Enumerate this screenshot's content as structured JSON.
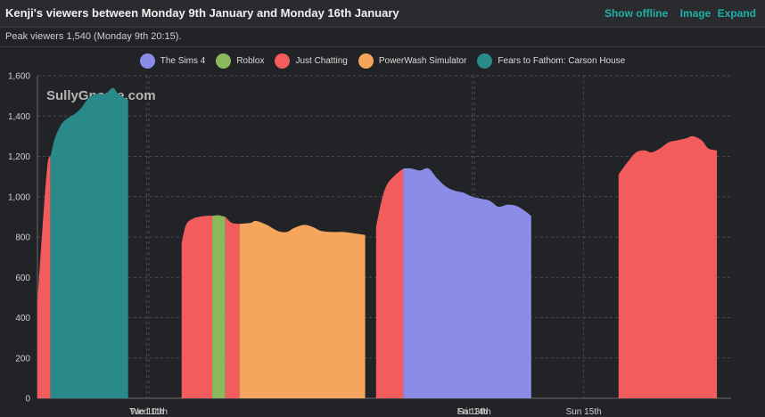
{
  "header": {
    "title": "Kenji's viewers between Monday 9th January and Monday 16th January",
    "show_offline": "Show offline",
    "image": "Image",
    "expand": "Expand"
  },
  "peak_text": "Peak viewers 1,540 (Monday 9th 20:15).",
  "watermark": "SullyGnome.com",
  "chart_data": {
    "type": "area",
    "title": "Kenji's viewers between Monday 9th January and Monday 16th January",
    "xlabel": "",
    "ylabel": "",
    "ylim": [
      0,
      1600
    ],
    "yticks": [
      0,
      200,
      400,
      600,
      800,
      1000,
      1200,
      1400,
      1600
    ],
    "ytick_labels": [
      "0",
      "200",
      "400",
      "600",
      "800",
      "1,000",
      "1,200",
      "1,400",
      "1,600"
    ],
    "xticks": [
      {
        "label": "Tue 10th",
        "day": 1.0
      },
      {
        "label": "Wed 11th",
        "day": 1.02
      },
      {
        "label": "Fri 13th",
        "day": 3.98
      },
      {
        "label": "Sat 14th",
        "day": 4.0
      },
      {
        "label": "Sun 15th",
        "day": 5.0
      }
    ],
    "xlim_days": [
      0,
      6.35
    ],
    "grid": true,
    "legend_position": "top",
    "colors": {
      "The Sims 4": "#8b8be8",
      "Roblox": "#8cb85c",
      "Just Chatting": "#f25c5c",
      "PowerWash Simulator": "#f6a55d",
      "Fears to Fathom: Carson House": "#2a8a8a"
    },
    "series": [
      {
        "name": "The Sims 4",
        "values": []
      },
      {
        "name": "Roblox",
        "values": []
      },
      {
        "name": "Just Chatting",
        "values": []
      },
      {
        "name": "PowerWash Simulator",
        "values": []
      },
      {
        "name": "Fears to Fathom: Carson House",
        "values": []
      }
    ],
    "segments": [
      {
        "category": "Just Chatting",
        "points": [
          [
            0.0,
            480
          ],
          [
            0.04,
            800
          ],
          [
            0.09,
            1150
          ],
          [
            0.12,
            1200
          ]
        ]
      },
      {
        "category": "Fears to Fathom: Carson House",
        "points": [
          [
            0.12,
            1200
          ],
          [
            0.16,
            1290
          ],
          [
            0.22,
            1360
          ],
          [
            0.28,
            1390
          ],
          [
            0.34,
            1410
          ],
          [
            0.4,
            1440
          ],
          [
            0.47,
            1490
          ],
          [
            0.54,
            1510
          ],
          [
            0.62,
            1510
          ],
          [
            0.69,
            1540
          ],
          [
            0.74,
            1510
          ],
          [
            0.83,
            1480
          ]
        ]
      },
      {
        "category": "Just Chatting",
        "points": [
          [
            1.32,
            770
          ],
          [
            1.36,
            860
          ],
          [
            1.42,
            890
          ],
          [
            1.48,
            900
          ],
          [
            1.55,
            905
          ],
          [
            1.6,
            905
          ]
        ]
      },
      {
        "category": "Roblox",
        "points": [
          [
            1.6,
            905
          ],
          [
            1.66,
            908
          ],
          [
            1.72,
            900
          ]
        ]
      },
      {
        "category": "Just Chatting",
        "points": [
          [
            1.72,
            900
          ],
          [
            1.78,
            870
          ],
          [
            1.85,
            865
          ]
        ]
      },
      {
        "category": "PowerWash Simulator",
        "points": [
          [
            1.85,
            865
          ],
          [
            1.95,
            870
          ],
          [
            2.0,
            880
          ],
          [
            2.1,
            860
          ],
          [
            2.2,
            830
          ],
          [
            2.28,
            825
          ],
          [
            2.35,
            845
          ],
          [
            2.44,
            860
          ],
          [
            2.52,
            850
          ],
          [
            2.6,
            830
          ],
          [
            2.7,
            825
          ],
          [
            2.8,
            825
          ],
          [
            2.9,
            818
          ],
          [
            3.0,
            810
          ]
        ]
      },
      {
        "category": "Just Chatting",
        "points": [
          [
            3.1,
            850
          ],
          [
            3.15,
            980
          ],
          [
            3.2,
            1060
          ],
          [
            3.28,
            1110
          ],
          [
            3.35,
            1140
          ]
        ]
      },
      {
        "category": "The Sims 4",
        "points": [
          [
            3.35,
            1140
          ],
          [
            3.42,
            1140
          ],
          [
            3.5,
            1130
          ],
          [
            3.58,
            1140
          ],
          [
            3.66,
            1090
          ],
          [
            3.74,
            1050
          ],
          [
            3.82,
            1030
          ],
          [
            3.9,
            1020
          ],
          [
            3.98,
            1000
          ],
          [
            4.06,
            990
          ],
          [
            4.14,
            980
          ],
          [
            4.22,
            950
          ],
          [
            4.3,
            960
          ],
          [
            4.38,
            955
          ],
          [
            4.46,
            930
          ],
          [
            4.52,
            905
          ]
        ]
      },
      {
        "category": "Just Chatting",
        "points": [
          [
            5.32,
            1110
          ],
          [
            5.4,
            1170
          ],
          [
            5.48,
            1220
          ],
          [
            5.56,
            1230
          ],
          [
            5.62,
            1220
          ],
          [
            5.7,
            1240
          ],
          [
            5.78,
            1270
          ],
          [
            5.86,
            1280
          ],
          [
            5.94,
            1290
          ],
          [
            6.0,
            1300
          ],
          [
            6.08,
            1280
          ],
          [
            6.14,
            1240
          ],
          [
            6.22,
            1230
          ]
        ]
      }
    ]
  }
}
